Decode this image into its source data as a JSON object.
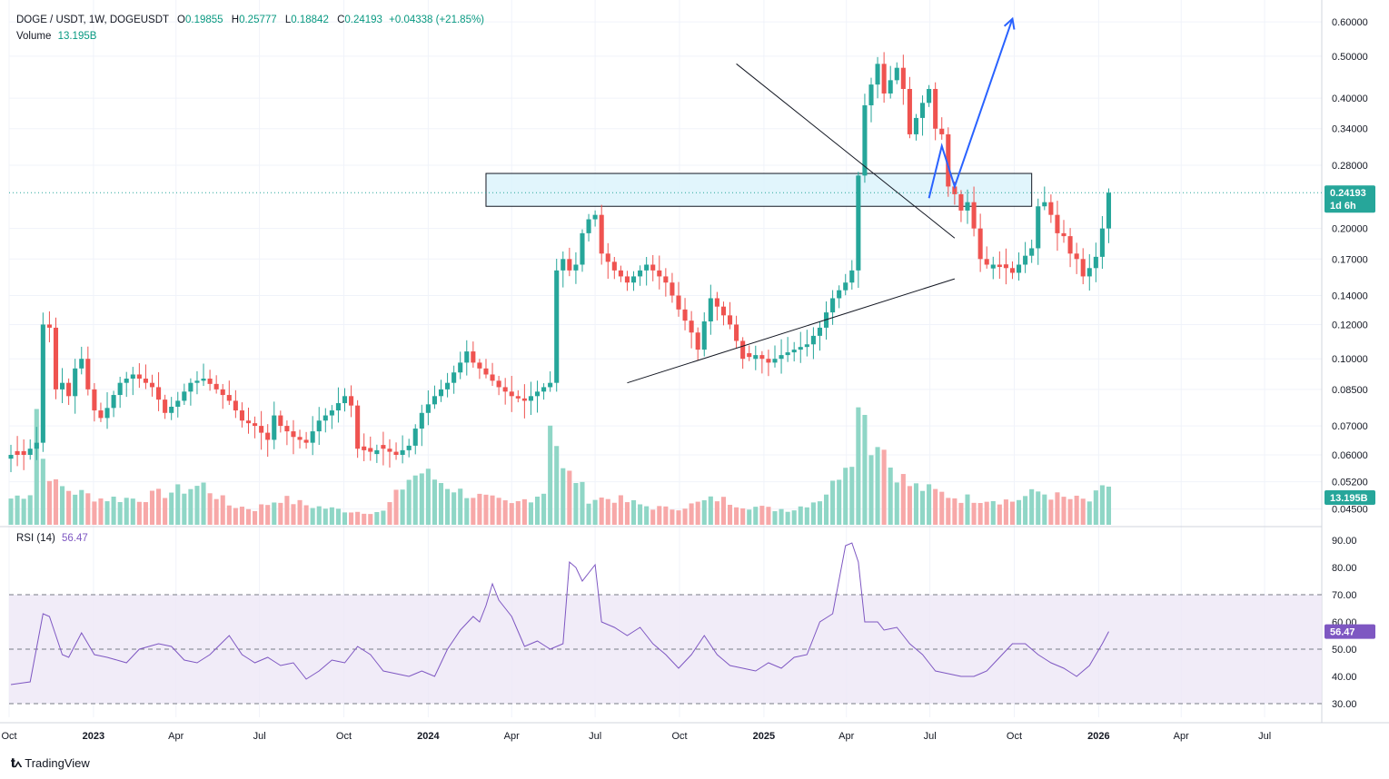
{
  "legend": {
    "symbol": "DOGE / USDT, 1W, DOGEUSDT",
    "o_label": "O",
    "o_value": "0.19855",
    "h_label": "H",
    "h_value": "0.25777",
    "l_label": "L",
    "l_value": "0.18842",
    "c_label": "C",
    "c_value": "0.24193",
    "change": "+0.04338 (+21.85%)",
    "volume_label": "Volume",
    "volume_value": "13.195B"
  },
  "rsi_legend": {
    "label": "RSI (14)",
    "value": "56.47"
  },
  "badges": {
    "price": "0.24193",
    "countdown": "1d 6h",
    "volume": "13.195B",
    "rsi": "56.47"
  },
  "brand": {
    "name": "TradingView"
  },
  "colors": {
    "up": "#26a69a",
    "down": "#ef5350",
    "up_vol": "#8fd6c6",
    "down_vol": "#f7a8a8",
    "rsi": "#7e57c2",
    "projection": "#2962ff",
    "zone": "#d9f3fb"
  },
  "chart_data": [
    {
      "type": "candlestick",
      "title": "DOGE / USDT, 1W, DOGEUSDT",
      "y_scale": "log",
      "ylim": [
        0.043,
        0.63
      ],
      "y_ticks": [
        "0.60000",
        "0.50000",
        "0.40000",
        "0.34000",
        "0.28000",
        "0.20000",
        "0.17000",
        "0.14000",
        "0.12000",
        "0.10000",
        "0.08500",
        "0.07000",
        "0.06000",
        "0.05200",
        "0.04500"
      ],
      "x_ticks": [
        "Oct",
        "2023",
        "Apr",
        "Jul",
        "Oct",
        "2024",
        "Apr",
        "Jul",
        "Oct",
        "2025",
        "Apr",
        "Jul",
        "Oct",
        "2026",
        "Apr",
        "Jul"
      ],
      "x_tick_dates": [
        "2022-10-01",
        "2023-01-01",
        "2023-04-01",
        "2023-07-01",
        "2023-10-01",
        "2024-01-01",
        "2024-04-01",
        "2024-07-01",
        "2024-10-01",
        "2025-01-01",
        "2025-04-01",
        "2025-07-01",
        "2025-10-01",
        "2026-01-01",
        "2026-04-01",
        "2026-07-01"
      ],
      "first_week": "2022-10-03",
      "close_anchors": [
        [
          0,
          0.06
        ],
        [
          2,
          0.06
        ],
        [
          4,
          0.064
        ],
        [
          5,
          0.12
        ],
        [
          6,
          0.118
        ],
        [
          7,
          0.085
        ],
        [
          8,
          0.088
        ],
        [
          9,
          0.082
        ],
        [
          10,
          0.095
        ],
        [
          11,
          0.1
        ],
        [
          12,
          0.085
        ],
        [
          13,
          0.076
        ],
        [
          14,
          0.073
        ],
        [
          15,
          0.077
        ],
        [
          17,
          0.088
        ],
        [
          19,
          0.092
        ],
        [
          20,
          0.09
        ],
        [
          22,
          0.086
        ],
        [
          24,
          0.075
        ],
        [
          26,
          0.08
        ],
        [
          28,
          0.088
        ],
        [
          30,
          0.09
        ],
        [
          32,
          0.085
        ],
        [
          34,
          0.08
        ],
        [
          36,
          0.072
        ],
        [
          38,
          0.07
        ],
        [
          40,
          0.065
        ],
        [
          41,
          0.074
        ],
        [
          42,
          0.07
        ],
        [
          44,
          0.066
        ],
        [
          46,
          0.064
        ],
        [
          48,
          0.072
        ],
        [
          50,
          0.076
        ],
        [
          52,
          0.082
        ],
        [
          53,
          0.078
        ],
        [
          54,
          0.062
        ],
        [
          56,
          0.061
        ],
        [
          58,
          0.062
        ],
        [
          60,
          0.06
        ],
        [
          62,
          0.063
        ],
        [
          64,
          0.075
        ],
        [
          66,
          0.082
        ],
        [
          68,
          0.088
        ],
        [
          70,
          0.098
        ],
        [
          71,
          0.104
        ],
        [
          72,
          0.098
        ],
        [
          74,
          0.092
        ],
        [
          76,
          0.086
        ],
        [
          78,
          0.082
        ],
        [
          80,
          0.08
        ],
        [
          82,
          0.084
        ],
        [
          84,
          0.088
        ],
        [
          85,
          0.16
        ],
        [
          86,
          0.17
        ],
        [
          87,
          0.16
        ],
        [
          88,
          0.165
        ],
        [
          89,
          0.195
        ],
        [
          90,
          0.21
        ],
        [
          91,
          0.215
        ],
        [
          92,
          0.175
        ],
        [
          94,
          0.16
        ],
        [
          96,
          0.15
        ],
        [
          98,
          0.16
        ],
        [
          99,
          0.165
        ],
        [
          100,
          0.16
        ],
        [
          102,
          0.15
        ],
        [
          104,
          0.13
        ],
        [
          106,
          0.115
        ],
        [
          107,
          0.105
        ],
        [
          108,
          0.122
        ],
        [
          109,
          0.138
        ],
        [
          110,
          0.132
        ],
        [
          112,
          0.12
        ],
        [
          114,
          0.1
        ],
        [
          116,
          0.102
        ],
        [
          118,
          0.098
        ],
        [
          120,
          0.102
        ],
        [
          122,
          0.105
        ],
        [
          124,
          0.108
        ],
        [
          126,
          0.118
        ],
        [
          128,
          0.138
        ],
        [
          130,
          0.15
        ],
        [
          131,
          0.16
        ],
        [
          132,
          0.265
        ],
        [
          133,
          0.385
        ],
        [
          134,
          0.43
        ],
        [
          135,
          0.48
        ],
        [
          136,
          0.41
        ],
        [
          137,
          0.44
        ],
        [
          138,
          0.47
        ],
        [
          139,
          0.42
        ],
        [
          140,
          0.33
        ],
        [
          141,
          0.36
        ],
        [
          142,
          0.39
        ],
        [
          143,
          0.42
        ],
        [
          144,
          0.34
        ],
        [
          145,
          0.33
        ],
        [
          146,
          0.25
        ],
        [
          147,
          0.24
        ],
        [
          148,
          0.22
        ],
        [
          149,
          0.23
        ],
        [
          150,
          0.2
        ],
        [
          151,
          0.17
        ],
        [
          152,
          0.165
        ],
        [
          153,
          0.165
        ],
        [
          154,
          0.163
        ],
        [
          155,
          0.162
        ],
        [
          156,
          0.158
        ],
        [
          157,
          0.165
        ],
        [
          158,
          0.173
        ],
        [
          159,
          0.18
        ],
        [
          160,
          0.225
        ],
        [
          161,
          0.23
        ],
        [
          162,
          0.215
        ],
        [
          163,
          0.195
        ],
        [
          164,
          0.192
        ],
        [
          165,
          0.175
        ],
        [
          166,
          0.17
        ],
        [
          167,
          0.155
        ],
        [
          168,
          0.162
        ],
        [
          169,
          0.172
        ],
        [
          170,
          0.2
        ],
        [
          171,
          0.24193
        ]
      ],
      "annotations": {
        "resistance_zone": {
          "price_low": 0.225,
          "price_high": 0.268,
          "start": "2024-03-04",
          "end": "2025-10-20"
        },
        "descending_trendline": {
          "start": [
            "2024-12-02",
            0.48
          ],
          "end": [
            "2025-07-28",
            0.19
          ]
        },
        "ascending_trendline": {
          "start": [
            "2024-08-05",
            0.088
          ],
          "end": [
            "2025-07-28",
            0.153
          ]
        },
        "projection_path": [
          [
            "2025-06-30",
            0.235
          ],
          [
            "2025-07-14",
            0.31
          ],
          [
            "2025-07-28",
            0.25
          ],
          [
            "2025-09-29",
            0.61
          ]
        ]
      }
    },
    {
      "type": "bar",
      "title": "Volume",
      "last_value": "13.195B",
      "relative_anchors": [
        [
          0,
          0.2
        ],
        [
          3,
          0.25
        ],
        [
          4,
          0.9
        ],
        [
          5,
          0.5
        ],
        [
          7,
          0.3
        ],
        [
          10,
          0.25
        ],
        [
          14,
          0.2
        ],
        [
          20,
          0.2
        ],
        [
          25,
          0.25
        ],
        [
          30,
          0.3
        ],
        [
          34,
          0.15
        ],
        [
          38,
          0.12
        ],
        [
          42,
          0.2
        ],
        [
          46,
          0.15
        ],
        [
          50,
          0.12
        ],
        [
          54,
          0.1
        ],
        [
          58,
          0.1
        ],
        [
          62,
          0.35
        ],
        [
          64,
          0.4
        ],
        [
          66,
          0.35
        ],
        [
          68,
          0.3
        ],
        [
          70,
          0.25
        ],
        [
          74,
          0.2
        ],
        [
          78,
          0.15
        ],
        [
          83,
          0.25
        ],
        [
          84,
          0.85
        ],
        [
          86,
          0.4
        ],
        [
          88,
          0.35
        ],
        [
          90,
          0.2
        ],
        [
          94,
          0.2
        ],
        [
          98,
          0.15
        ],
        [
          102,
          0.12
        ],
        [
          106,
          0.15
        ],
        [
          110,
          0.2
        ],
        [
          114,
          0.15
        ],
        [
          118,
          0.12
        ],
        [
          122,
          0.12
        ],
        [
          126,
          0.2
        ],
        [
          128,
          0.3
        ],
        [
          130,
          0.5
        ],
        [
          131,
          0.55
        ],
        [
          132,
          0.85
        ],
        [
          133,
          1.0
        ],
        [
          134,
          0.55
        ],
        [
          135,
          0.7
        ],
        [
          137,
          0.45
        ],
        [
          140,
          0.3
        ],
        [
          144,
          0.25
        ],
        [
          148,
          0.2
        ],
        [
          152,
          0.2
        ],
        [
          156,
          0.18
        ],
        [
          160,
          0.25
        ],
        [
          164,
          0.2
        ],
        [
          168,
          0.18
        ],
        [
          171,
          0.3
        ]
      ]
    },
    {
      "type": "line",
      "title": "RSI (14)",
      "last_value": "56.47",
      "ylim": [
        25,
        95
      ],
      "y_ticks": [
        "90.00",
        "80.00",
        "70.00",
        "60.00",
        "50.00",
        "40.00",
        "30.00"
      ],
      "band": [
        30,
        70
      ],
      "midline": 50,
      "anchors": [
        [
          0,
          37
        ],
        [
          3,
          38
        ],
        [
          5,
          63
        ],
        [
          6,
          62
        ],
        [
          8,
          48
        ],
        [
          9,
          47
        ],
        [
          11,
          56
        ],
        [
          13,
          48
        ],
        [
          15,
          47
        ],
        [
          18,
          45
        ],
        [
          20,
          50
        ],
        [
          23,
          52
        ],
        [
          25,
          51
        ],
        [
          27,
          46
        ],
        [
          29,
          45
        ],
        [
          31,
          48
        ],
        [
          34,
          55
        ],
        [
          36,
          48
        ],
        [
          38,
          45
        ],
        [
          40,
          47
        ],
        [
          42,
          44
        ],
        [
          44,
          45
        ],
        [
          46,
          39
        ],
        [
          48,
          42
        ],
        [
          50,
          46
        ],
        [
          52,
          45
        ],
        [
          54,
          51
        ],
        [
          56,
          48
        ],
        [
          58,
          42
        ],
        [
          60,
          41
        ],
        [
          62,
          40
        ],
        [
          64,
          42
        ],
        [
          66,
          40
        ],
        [
          68,
          50
        ],
        [
          70,
          57
        ],
        [
          72,
          62
        ],
        [
          73,
          60
        ],
        [
          74,
          66
        ],
        [
          75,
          74
        ],
        [
          76,
          68
        ],
        [
          78,
          62
        ],
        [
          80,
          51
        ],
        [
          82,
          53
        ],
        [
          84,
          50
        ],
        [
          86,
          52
        ],
        [
          87,
          82
        ],
        [
          88,
          80
        ],
        [
          89,
          75
        ],
        [
          90,
          78
        ],
        [
          91,
          81
        ],
        [
          92,
          60
        ],
        [
          94,
          58
        ],
        [
          96,
          55
        ],
        [
          98,
          58
        ],
        [
          100,
          52
        ],
        [
          102,
          48
        ],
        [
          104,
          43
        ],
        [
          106,
          48
        ],
        [
          108,
          55
        ],
        [
          110,
          48
        ],
        [
          112,
          44
        ],
        [
          114,
          43
        ],
        [
          116,
          42
        ],
        [
          118,
          45
        ],
        [
          120,
          43
        ],
        [
          122,
          47
        ],
        [
          124,
          48
        ],
        [
          126,
          60
        ],
        [
          128,
          63
        ],
        [
          130,
          88
        ],
        [
          131,
          89
        ],
        [
          132,
          82
        ],
        [
          133,
          60
        ],
        [
          135,
          60
        ],
        [
          136,
          57
        ],
        [
          138,
          58
        ],
        [
          140,
          52
        ],
        [
          142,
          48
        ],
        [
          144,
          42
        ],
        [
          146,
          41
        ],
        [
          148,
          40
        ],
        [
          150,
          40
        ],
        [
          152,
          42
        ],
        [
          154,
          47
        ],
        [
          156,
          52
        ],
        [
          158,
          52
        ],
        [
          160,
          48
        ],
        [
          162,
          45
        ],
        [
          164,
          43
        ],
        [
          166,
          40
        ],
        [
          168,
          44
        ],
        [
          170,
          52
        ],
        [
          171,
          56.47
        ]
      ]
    }
  ]
}
